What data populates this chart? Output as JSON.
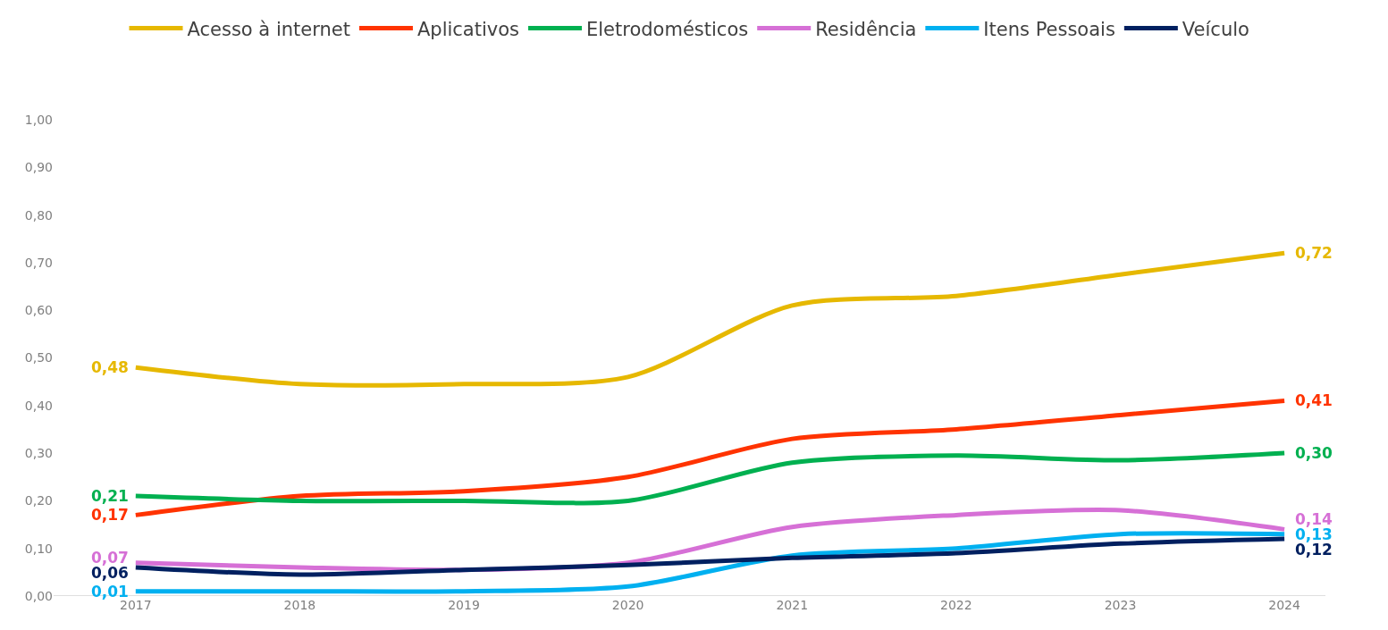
{
  "chart_data": {
    "type": "line",
    "categories": [
      "2017",
      "2018",
      "2019",
      "2020",
      "2021",
      "2022",
      "2023",
      "2024"
    ],
    "ylim": [
      0,
      1
    ],
    "yticks": [
      {
        "value": 0,
        "label": "0,00"
      },
      {
        "value": 0.1,
        "label": "0,10"
      },
      {
        "value": 0.2,
        "label": "0,20"
      },
      {
        "value": 0.3,
        "label": "0,30"
      },
      {
        "value": 0.4,
        "label": "0,40"
      },
      {
        "value": 0.5,
        "label": "0,50"
      },
      {
        "value": 0.6,
        "label": "0,60"
      },
      {
        "value": 0.7,
        "label": "0,70"
      },
      {
        "value": 0.8,
        "label": "0,80"
      },
      {
        "value": 0.9,
        "label": "0,90"
      },
      {
        "value": 1,
        "label": "1,00"
      }
    ],
    "grid": false,
    "legend": "top",
    "marker": "none",
    "line_style": "solid",
    "series": [
      {
        "name": "Acesso à internet",
        "color": "#e6b800",
        "values": [
          0.48,
          0.445,
          0.445,
          0.46,
          0.61,
          0.63,
          0.675,
          0.72
        ],
        "value_labels": [
          "0,48",
          null,
          null,
          null,
          null,
          null,
          null,
          "0,72"
        ]
      },
      {
        "name": "Aplicativos",
        "color": "#ff3300",
        "values": [
          0.17,
          0.21,
          0.22,
          0.25,
          0.33,
          0.35,
          0.38,
          0.41
        ],
        "value_labels": [
          "0,17",
          null,
          null,
          null,
          null,
          null,
          null,
          "0,41"
        ]
      },
      {
        "name": "Eletrodomésticos",
        "color": "#00b050",
        "values": [
          0.21,
          0.2,
          0.2,
          0.2,
          0.28,
          0.295,
          0.285,
          0.3
        ],
        "value_labels": [
          "0,21",
          null,
          null,
          null,
          null,
          null,
          null,
          "0,30"
        ]
      },
      {
        "name": "Residência",
        "color": "#d670d6",
        "values": [
          0.07,
          0.06,
          0.055,
          0.07,
          0.145,
          0.17,
          0.18,
          0.14
        ],
        "value_labels": [
          "0,07",
          null,
          null,
          null,
          null,
          null,
          null,
          "0,14"
        ]
      },
      {
        "name": "Itens Pessoais",
        "color": "#00b0f0",
        "values": [
          0.01,
          0.01,
          0.01,
          0.02,
          0.085,
          0.1,
          0.13,
          0.13
        ],
        "value_labels": [
          "0,01",
          null,
          null,
          null,
          null,
          null,
          null,
          "0,13"
        ]
      },
      {
        "name": "Veículo",
        "color": "#002060",
        "values": [
          0.06,
          0.045,
          0.055,
          0.065,
          0.08,
          0.09,
          0.11,
          0.12
        ],
        "value_labels": [
          "0,06",
          null,
          null,
          null,
          null,
          null,
          null,
          "0,12"
        ]
      }
    ]
  }
}
